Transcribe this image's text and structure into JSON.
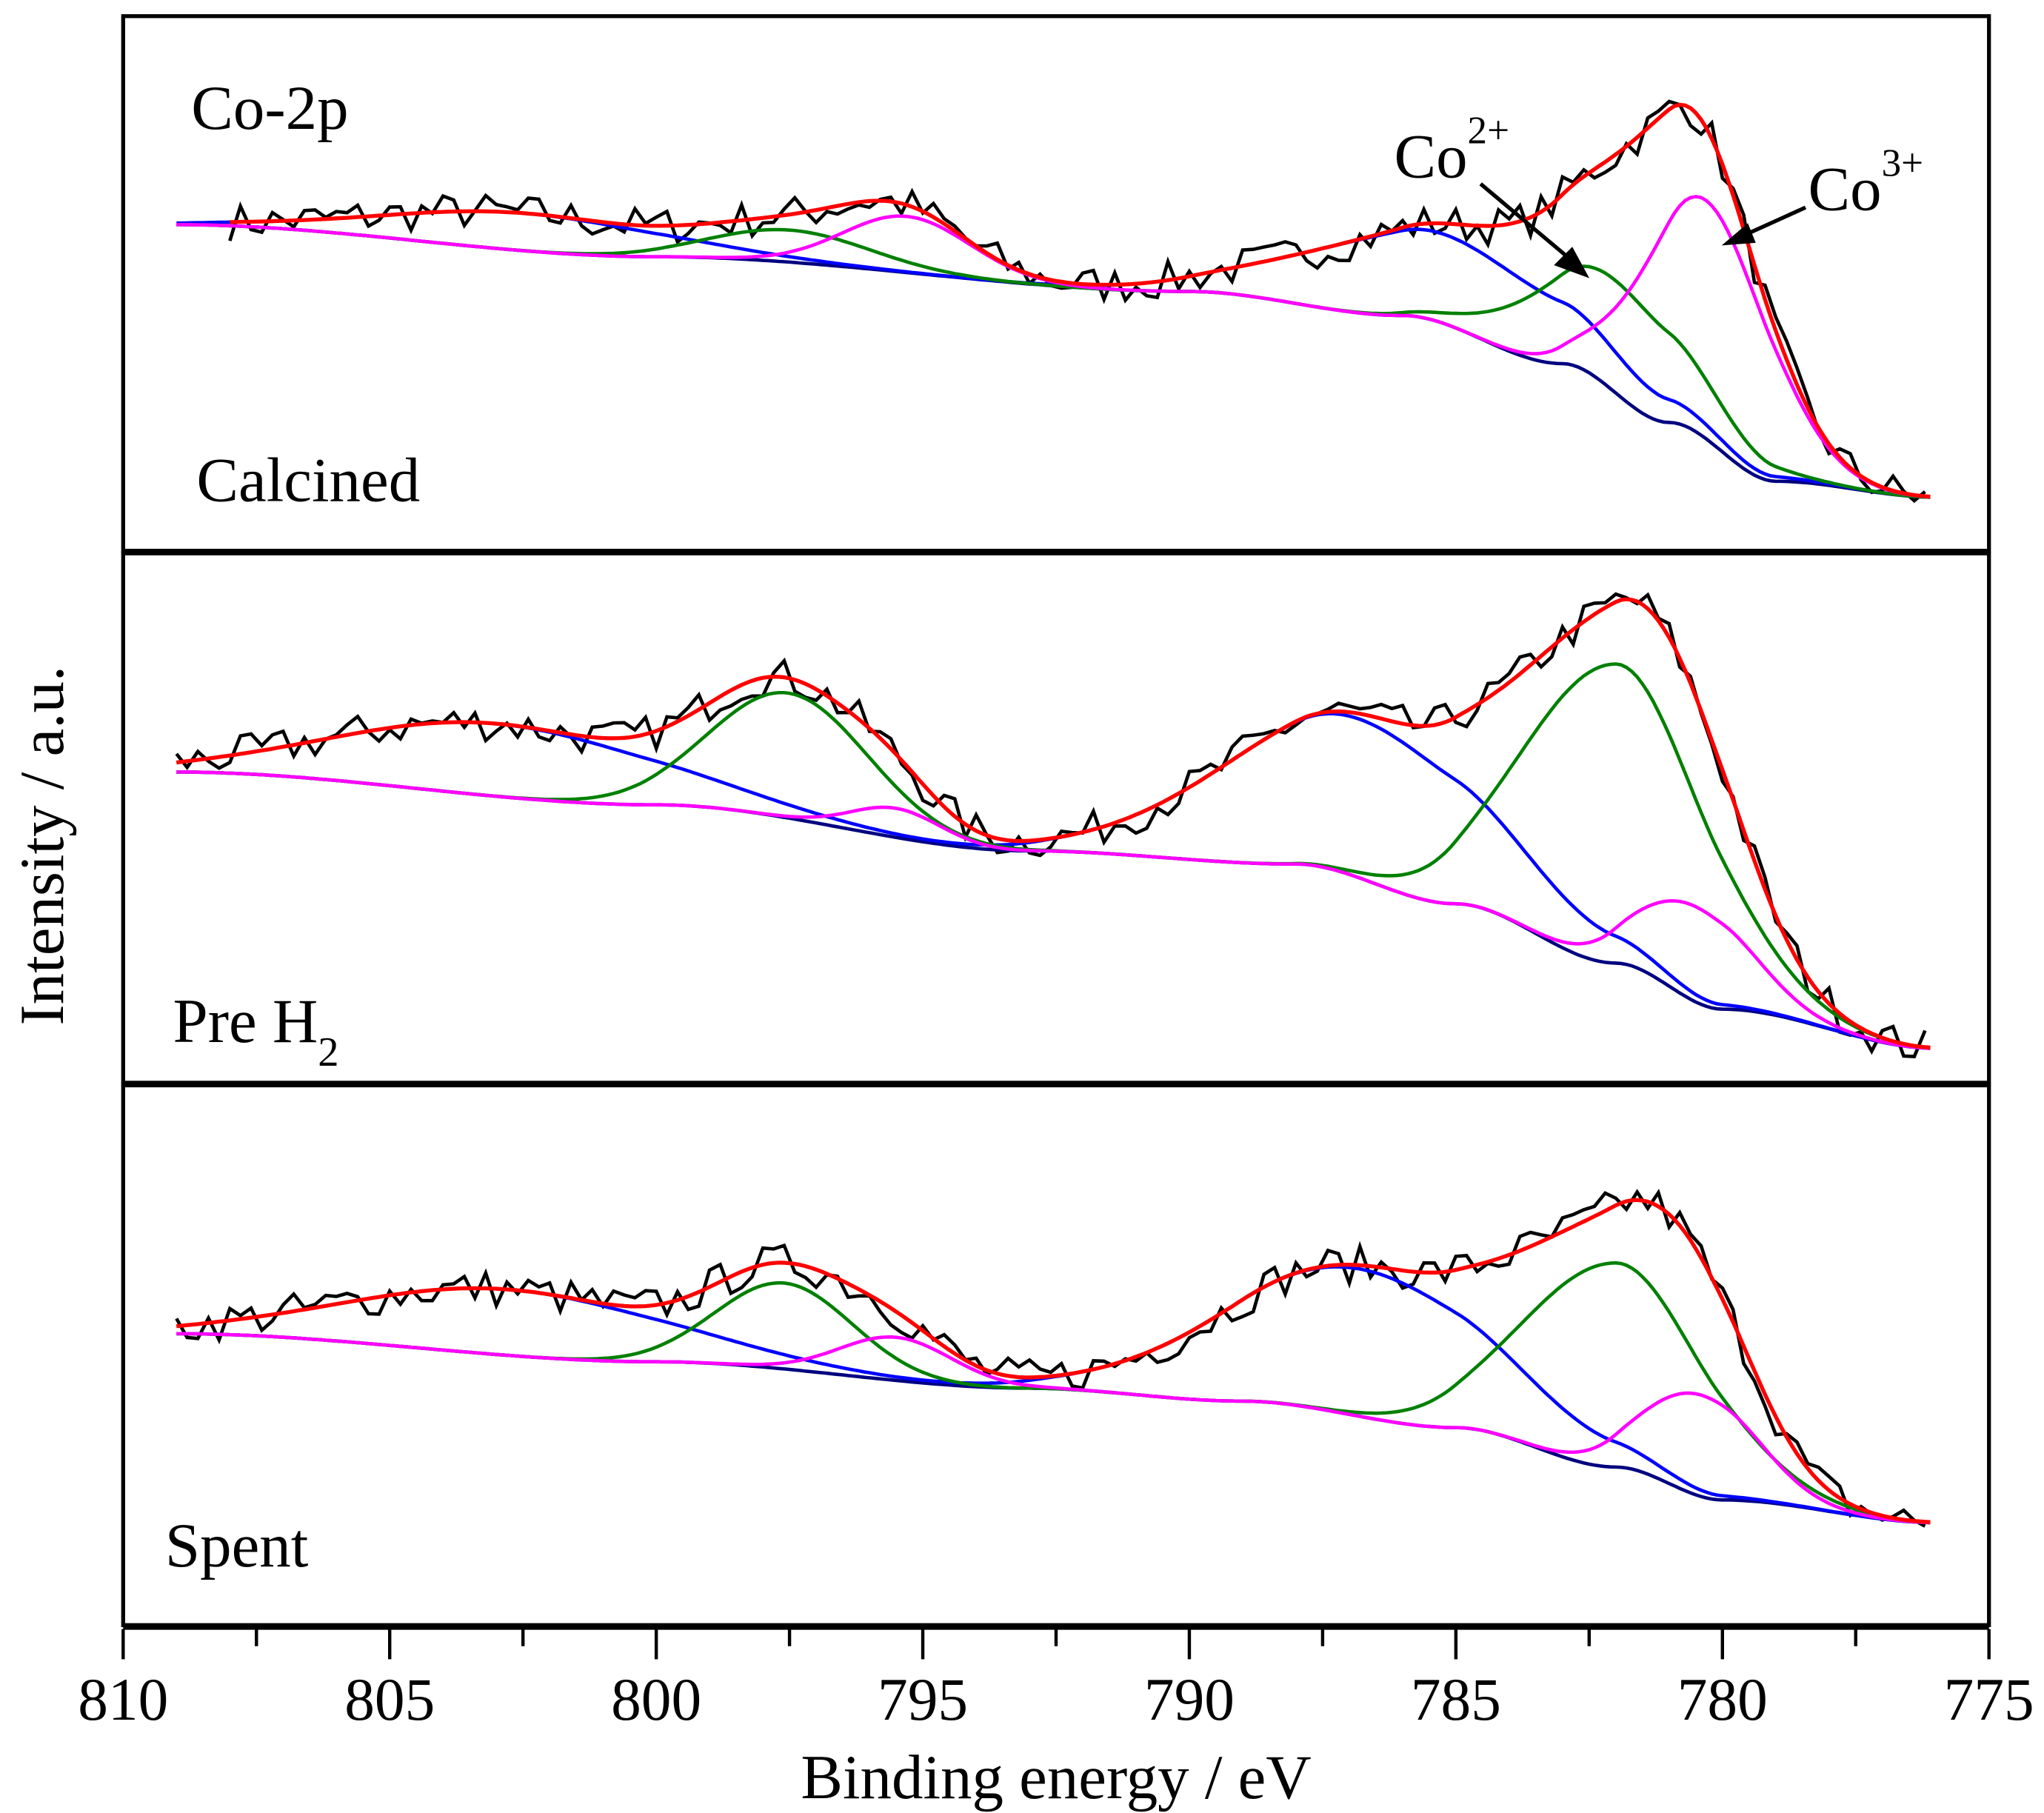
{
  "chart_data": {
    "type": "line",
    "title": "Co-2p",
    "xlabel": "Binding energy / eV",
    "ylabel": "Intensity / a.u.",
    "xlim": [
      810,
      775
    ],
    "xticks": [
      "810",
      "805",
      "800",
      "795",
      "790",
      "785",
      "780",
      "775"
    ],
    "colors": {
      "raw": "#000000",
      "fit": "#ff0000",
      "baseline": "#000080",
      "satellite": "#0000ff",
      "co2": "#008000",
      "co3": "#ff00ff"
    },
    "annotations": {
      "co2_label": "Co",
      "co2_sup": "2+",
      "co3_label": "Co",
      "co3_sup": "3+"
    },
    "panels": [
      {
        "label": "Calcined",
        "raw_start": 808,
        "baseline": [
          [
            809,
            61
          ],
          [
            800,
            55
          ],
          [
            790,
            48.5
          ],
          [
            786,
            44
          ],
          [
            783,
            35
          ],
          [
            781,
            24
          ],
          [
            779,
            13
          ],
          [
            776,
            10
          ]
        ],
        "components": [
          {
            "name": "satellite",
            "peaks": [
              [
                802.5,
                7,
                6
              ],
              [
                785.2,
                16.7,
                6
              ]
            ]
          },
          {
            "name": "co2",
            "peaks": [
              [
                797.5,
                6,
                3.5
              ],
              [
                782.0,
                21,
                3.5
              ]
            ]
          },
          {
            "name": "co3",
            "peaks": [
              [
                795.3,
                10.5,
                2.8
              ],
              [
                780.3,
                44.6,
                2.8
              ]
            ]
          }
        ]
      },
      {
        "label": "Pre H",
        "label_sub": "2",
        "raw_start": 809,
        "baseline": [
          [
            809,
            58.7
          ],
          [
            800,
            52.5
          ],
          [
            793,
            43.8
          ],
          [
            788,
            41.3
          ],
          [
            785,
            33.8
          ],
          [
            782,
            22.6
          ],
          [
            780,
            13.9
          ],
          [
            776,
            6.5
          ]
        ],
        "components": [
          {
            "name": "satellite",
            "peaks": [
              [
                803,
                13.7,
                7
              ],
              [
                786.8,
                30,
                6
              ]
            ]
          },
          {
            "name": "co2",
            "peaks": [
              [
                797.5,
                23.6,
                3.5
              ],
              [
                782.0,
                56.5,
                4
              ]
            ]
          },
          {
            "name": "co3",
            "peaks": [
              [
                795.5,
                5.5,
                2
              ],
              [
                780.5,
                18,
                2.5
              ]
            ]
          }
        ]
      },
      {
        "label": "Spent",
        "raw_start": 809,
        "baseline": [
          [
            809,
            54
          ],
          [
            800,
            48.8
          ],
          [
            793,
            43.9
          ],
          [
            789,
            41.5
          ],
          [
            785,
            36.6
          ],
          [
            782,
            29.3
          ],
          [
            780,
            23.2
          ],
          [
            776,
            19
          ]
        ],
        "components": [
          {
            "name": "satellite",
            "peaks": [
              [
                802.8,
                12.2,
                7
              ],
              [
                786.8,
                27.3,
                6
              ]
            ]
          },
          {
            "name": "co2",
            "peaks": [
              [
                797.6,
                15.9,
                3
              ],
              [
                782.0,
                37.8,
                4
              ]
            ]
          },
          {
            "name": "co3",
            "peaks": [
              [
                795.5,
                8,
                2.5
              ],
              [
                780.4,
                18.8,
                2.5
              ]
            ]
          }
        ]
      }
    ]
  }
}
